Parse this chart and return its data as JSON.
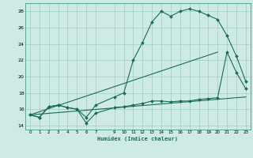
{
  "xlabel": "Humidex (Indice chaleur)",
  "bg_color": "#ceeae4",
  "line_color": "#1a6b5a",
  "grid_color": "#a0ccc4",
  "xlim": [
    -0.5,
    23.5
  ],
  "ylim": [
    13.5,
    29.0
  ],
  "xtick_vals": [
    0,
    1,
    2,
    3,
    4,
    5,
    6,
    7,
    9,
    10,
    11,
    12,
    13,
    14,
    15,
    16,
    17,
    18,
    19,
    20,
    21,
    22,
    23
  ],
  "xtick_labels": [
    "0",
    "1",
    "2",
    "3",
    "4",
    "5",
    "6",
    "7",
    "9",
    "10",
    "11",
    "12",
    "13",
    "14",
    "15",
    "16",
    "17",
    "18",
    "19",
    "20",
    "21",
    "22",
    "23"
  ],
  "ytick_vals": [
    14,
    16,
    18,
    20,
    22,
    24,
    26,
    28
  ],
  "series1_x": [
    0,
    1,
    2,
    3,
    4,
    5,
    6,
    7,
    9,
    10,
    11,
    12,
    13,
    14,
    15,
    16,
    17,
    18,
    19,
    20,
    21,
    22,
    23
  ],
  "series1_y": [
    15.3,
    15.0,
    16.3,
    16.5,
    16.2,
    16.0,
    15.0,
    16.5,
    17.5,
    18.0,
    22.0,
    24.2,
    26.7,
    28.0,
    27.4,
    28.0,
    28.3,
    28.0,
    27.5,
    27.0,
    25.0,
    22.5,
    19.4
  ],
  "series2_x": [
    0,
    1,
    2,
    3,
    4,
    5,
    6,
    7,
    9,
    10,
    11,
    12,
    13,
    14,
    15,
    16,
    17,
    18,
    19,
    20,
    21,
    22,
    23
  ],
  "series2_y": [
    15.3,
    15.0,
    16.3,
    16.5,
    16.2,
    16.0,
    14.3,
    15.5,
    16.2,
    16.3,
    16.5,
    16.7,
    17.0,
    17.0,
    16.9,
    17.0,
    17.0,
    17.2,
    17.3,
    17.4,
    23.0,
    20.5,
    18.5
  ],
  "series3_x": [
    0,
    20
  ],
  "series3_y": [
    15.3,
    23.0
  ],
  "series4_x": [
    0,
    23
  ],
  "series4_y": [
    15.3,
    17.5
  ]
}
